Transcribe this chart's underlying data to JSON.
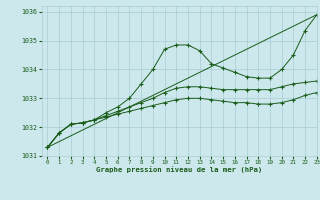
{
  "title": "Graphe pression niveau de la mer (hPa)",
  "xlim": [
    -0.5,
    23
  ],
  "ylim": [
    1031,
    1036.2
  ],
  "xticks": [
    0,
    1,
    2,
    3,
    4,
    5,
    6,
    7,
    8,
    9,
    10,
    11,
    12,
    13,
    14,
    15,
    16,
    17,
    18,
    19,
    20,
    21,
    22,
    23
  ],
  "yticks": [
    1031,
    1032,
    1033,
    1034,
    1035,
    1036
  ],
  "bg_color": "#cce8ec",
  "grid_color": "#aaccd4",
  "line_color": "#1a5c1a",
  "series": [
    {
      "x": [
        0,
        1,
        2,
        3,
        4,
        5,
        6,
        7,
        8,
        9,
        10,
        11,
        12,
        13,
        14,
        15,
        16,
        17,
        18,
        19,
        20,
        21,
        22,
        23
      ],
      "y": [
        1031.3,
        1031.8,
        1032.1,
        1032.15,
        1032.25,
        1032.5,
        1032.7,
        1033.0,
        1033.5,
        1034.0,
        1034.7,
        1034.85,
        1034.85,
        1034.65,
        1034.2,
        1034.05,
        1033.9,
        1033.75,
        1033.7,
        1033.7,
        1034.0,
        1034.5,
        1035.35,
        1035.9
      ],
      "marker": "+"
    },
    {
      "x": [
        0,
        1,
        2,
        3,
        4,
        5,
        6,
        7,
        8,
        9,
        10,
        11,
        12,
        13,
        14,
        15,
        16,
        17,
        18,
        19,
        20,
        21,
        22,
        23
      ],
      "y": [
        1031.3,
        1031.8,
        1032.1,
        1032.15,
        1032.25,
        1032.4,
        1032.55,
        1032.7,
        1032.85,
        1033.0,
        1033.2,
        1033.35,
        1033.4,
        1033.4,
        1033.35,
        1033.3,
        1033.3,
        1033.3,
        1033.3,
        1033.3,
        1033.4,
        1033.5,
        1033.55,
        1033.6
      ],
      "marker": "+"
    },
    {
      "x": [
        0,
        1,
        2,
        3,
        4,
        5,
        6,
        7,
        8,
        9,
        10,
        11,
        12,
        13,
        14,
        15,
        16,
        17,
        18,
        19,
        20,
        21,
        22,
        23
      ],
      "y": [
        1031.3,
        1031.8,
        1032.1,
        1032.15,
        1032.25,
        1032.35,
        1032.45,
        1032.55,
        1032.65,
        1032.75,
        1032.85,
        1032.95,
        1033.0,
        1033.0,
        1032.95,
        1032.9,
        1032.85,
        1032.85,
        1032.8,
        1032.8,
        1032.85,
        1032.95,
        1033.1,
        1033.2
      ],
      "marker": "+"
    },
    {
      "x": [
        0,
        23
      ],
      "y": [
        1031.3,
        1035.9
      ],
      "marker": null
    }
  ]
}
